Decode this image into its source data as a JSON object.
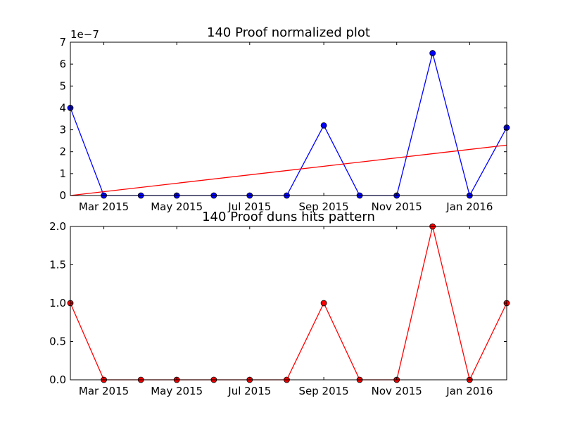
{
  "chart_data": [
    {
      "type": "line",
      "title": "140 Proof normalized plot",
      "y_offset_label": "1e−7",
      "x": [
        "2015-02-01",
        "2015-03-01",
        "2015-04-01",
        "2015-05-01",
        "2015-06-01",
        "2015-07-01",
        "2015-08-01",
        "2015-09-01",
        "2015-10-01",
        "2015-11-01",
        "2015-12-01",
        "2016-01-01",
        "2016-02-01"
      ],
      "x_tick_dates": [
        "2015-03-01",
        "2015-05-01",
        "2015-07-01",
        "2015-09-01",
        "2015-11-01",
        "2016-01-01"
      ],
      "x_tick_labels": [
        "Mar 2015",
        "May 2015",
        "Jul 2015",
        "Sep 2015",
        "Nov 2015",
        "Jan 2016"
      ],
      "ylim": [
        0,
        7
      ],
      "y_ticks": [
        0,
        1,
        2,
        3,
        4,
        5,
        6,
        7
      ],
      "y_tick_labels": [
        "0",
        "1",
        "2",
        "3",
        "4",
        "5",
        "6",
        "7"
      ],
      "series": [
        {
          "values": [
            4.0,
            0,
            0,
            0,
            0,
            0,
            0,
            3.2,
            0,
            0,
            6.5,
            0,
            3.1
          ],
          "color": "#0000ff",
          "markers": true
        },
        {
          "values": [
            0,
            2.3
          ],
          "x": [
            "2015-02-01",
            "2016-02-01"
          ],
          "color": "#ff0000",
          "markers": false,
          "kind": "trend"
        }
      ]
    },
    {
      "type": "line",
      "title": "140 Proof duns hits pattern",
      "x": [
        "2015-02-01",
        "2015-03-01",
        "2015-04-01",
        "2015-05-01",
        "2015-06-01",
        "2015-07-01",
        "2015-08-01",
        "2015-09-01",
        "2015-10-01",
        "2015-11-01",
        "2015-12-01",
        "2016-01-01",
        "2016-02-01"
      ],
      "x_tick_dates": [
        "2015-03-01",
        "2015-05-01",
        "2015-07-01",
        "2015-09-01",
        "2015-11-01",
        "2016-01-01"
      ],
      "x_tick_labels": [
        "Mar 2015",
        "May 2015",
        "Jul 2015",
        "Sep 2015",
        "Nov 2015",
        "Jan 2016"
      ],
      "ylim": [
        0,
        2.0
      ],
      "y_ticks": [
        0,
        0.5,
        1.0,
        1.5,
        2.0
      ],
      "y_tick_labels": [
        "0.0",
        "0.5",
        "1.0",
        "1.5",
        "2.0"
      ],
      "series": [
        {
          "values": [
            1,
            0,
            0,
            0,
            0,
            0,
            0,
            1,
            0,
            0,
            2,
            0,
            1
          ],
          "color": "#ff0000",
          "markers": true
        }
      ]
    }
  ]
}
